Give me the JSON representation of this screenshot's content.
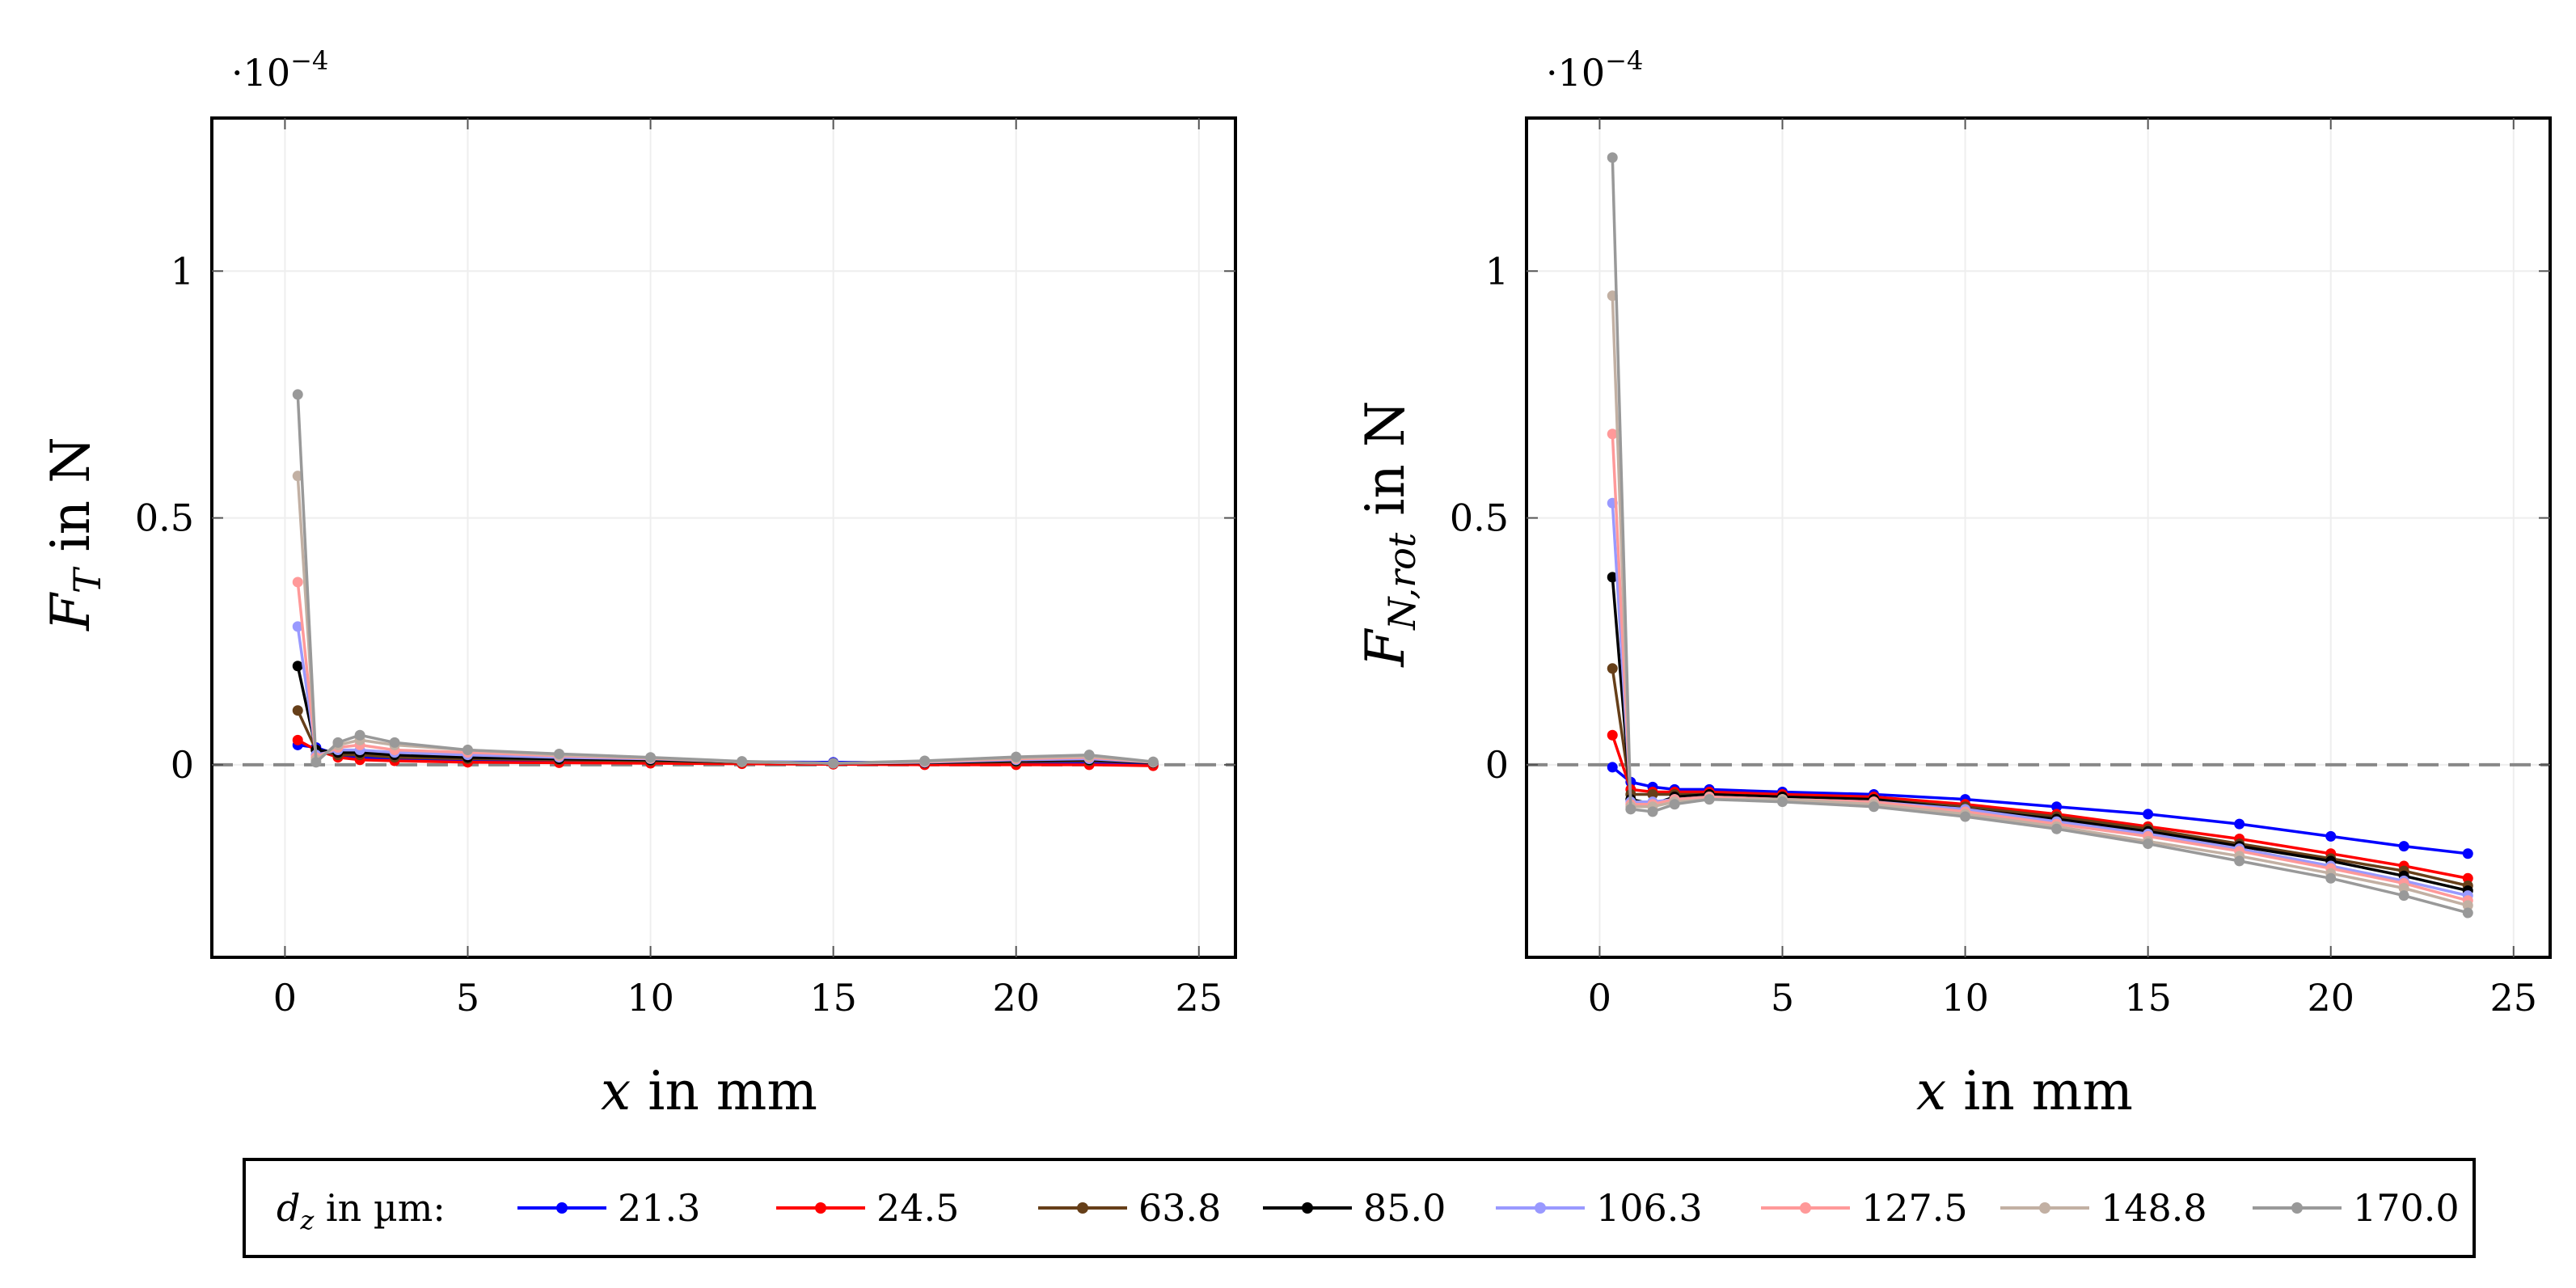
{
  "chart_data": [
    {
      "type": "line",
      "title": "",
      "scale_label": "·10",
      "scale_exponent": "−4",
      "ylabel_main": "F",
      "ylabel_sub": "T",
      "ylabel_unit": " in N",
      "xlabel_var": "x",
      "xlabel_unit": " in mm",
      "xlim": [
        -2,
        26
      ],
      "ylim": [
        -0.39,
        1.31
      ],
      "xticks": [
        0,
        5,
        10,
        15,
        20,
        25
      ],
      "xtick_labels": [
        "0",
        "5",
        "10",
        "15",
        "20",
        "25"
      ],
      "yticks": [
        0,
        0.5,
        1
      ],
      "ytick_labels": [
        "0",
        "0.5",
        "1"
      ],
      "grid": true,
      "reference_line_y": 0,
      "peaks": {
        "21.3": 0.04,
        "24.5": 0.05,
        "63.8": 0.11,
        "85.0": 0.2,
        "106.3": 0.28,
        "127.5": 0.37,
        "148.8": 0.585,
        "170.0": 0.75
      },
      "series": [
        {
          "name": "21.3",
          "x": [
            0.35,
            0.85,
            1.45,
            2.05,
            3.0,
            5.0,
            7.5,
            10.0,
            12.5,
            15.0,
            17.5,
            20.0,
            22.0,
            23.75
          ],
          "y": [
            0.04,
            0.035,
            0.02,
            0.015,
            0.012,
            0.01,
            0.008,
            0.007,
            0.006,
            0.005,
            0.005,
            0.004,
            0.004,
            0.002
          ]
        },
        {
          "name": "24.5",
          "x": [
            0.35,
            0.85,
            1.45,
            2.05,
            3.0,
            5.0,
            7.5,
            10.0,
            12.5,
            15.0,
            17.5,
            20.0,
            22.0,
            23.75
          ],
          "y": [
            0.05,
            0.03,
            0.015,
            0.01,
            0.008,
            0.005,
            0.004,
            0.003,
            0.002,
            0.001,
            0.0,
            0.0,
            0.0,
            -0.002
          ]
        },
        {
          "name": "63.8",
          "x": [
            0.35,
            0.85,
            1.45,
            2.05,
            3.0,
            5.0,
            7.5,
            10.0,
            12.5,
            15.0,
            17.5,
            20.0,
            22.0,
            23.75
          ],
          "y": [
            0.11,
            0.03,
            0.02,
            0.02,
            0.015,
            0.012,
            0.01,
            0.008,
            0.005,
            0.003,
            0.004,
            0.006,
            0.008,
            0.004
          ]
        },
        {
          "name": "85.0",
          "x": [
            0.35,
            0.85,
            1.45,
            2.05,
            3.0,
            5.0,
            7.5,
            10.0,
            12.5,
            15.0,
            17.5,
            20.0,
            22.0,
            23.75
          ],
          "y": [
            0.2,
            0.03,
            0.025,
            0.025,
            0.02,
            0.015,
            0.012,
            0.01,
            0.006,
            0.003,
            0.004,
            0.008,
            0.01,
            0.004
          ]
        },
        {
          "name": "106.3",
          "x": [
            0.35,
            0.85,
            1.45,
            2.05,
            3.0,
            5.0,
            7.5,
            10.0,
            12.5,
            15.0,
            17.5,
            20.0,
            22.0,
            23.75
          ],
          "y": [
            0.28,
            0.02,
            0.03,
            0.03,
            0.025,
            0.02,
            0.015,
            0.012,
            0.006,
            0.003,
            0.005,
            0.01,
            0.012,
            0.005
          ]
        },
        {
          "name": "127.5",
          "x": [
            0.35,
            0.85,
            1.45,
            2.05,
            3.0,
            5.0,
            7.5,
            10.0,
            12.5,
            15.0,
            17.5,
            20.0,
            22.0,
            23.75
          ],
          "y": [
            0.37,
            0.015,
            0.035,
            0.04,
            0.03,
            0.025,
            0.018,
            0.013,
            0.006,
            0.003,
            0.006,
            0.012,
            0.015,
            0.005
          ]
        },
        {
          "name": "148.8",
          "x": [
            0.35,
            0.85,
            1.45,
            2.05,
            3.0,
            5.0,
            7.5,
            10.0,
            12.5,
            15.0,
            17.5,
            20.0,
            22.0,
            23.75
          ],
          "y": [
            0.585,
            0.01,
            0.04,
            0.05,
            0.04,
            0.03,
            0.02,
            0.014,
            0.006,
            0.003,
            0.007,
            0.014,
            0.017,
            0.006
          ]
        },
        {
          "name": "170.0",
          "x": [
            0.35,
            0.85,
            1.45,
            2.05,
            3.0,
            5.0,
            7.5,
            10.0,
            12.5,
            15.0,
            17.5,
            20.0,
            22.0,
            23.75
          ],
          "y": [
            0.75,
            0.005,
            0.045,
            0.06,
            0.045,
            0.03,
            0.022,
            0.015,
            0.007,
            0.003,
            0.008,
            0.016,
            0.02,
            0.006
          ]
        }
      ]
    },
    {
      "type": "line",
      "title": "",
      "scale_label": "·10",
      "scale_exponent": "−4",
      "ylabel_main": "F",
      "ylabel_sub": "N,rot",
      "ylabel_unit": " in N",
      "xlabel_var": "x",
      "xlabel_unit": " in mm",
      "xlim": [
        -2,
        26
      ],
      "ylim": [
        -0.39,
        1.31
      ],
      "xticks": [
        0,
        5,
        10,
        15,
        20,
        25
      ],
      "xtick_labels": [
        "0",
        "5",
        "10",
        "15",
        "20",
        "25"
      ],
      "yticks": [
        0,
        0.5,
        1
      ],
      "ytick_labels": [
        "0",
        "0.5",
        "1"
      ],
      "grid": true,
      "reference_line_y": 0,
      "series": [
        {
          "name": "21.3",
          "x": [
            0.35,
            0.85,
            1.45,
            2.05,
            3.0,
            5.0,
            7.5,
            10.0,
            12.5,
            15.0,
            17.5,
            20.0,
            22.0,
            23.75
          ],
          "y": [
            -0.005,
            -0.035,
            -0.045,
            -0.05,
            -0.05,
            -0.055,
            -0.06,
            -0.07,
            -0.085,
            -0.1,
            -0.12,
            -0.145,
            -0.165,
            -0.18
          ]
        },
        {
          "name": "24.5",
          "x": [
            0.35,
            0.85,
            1.45,
            2.05,
            3.0,
            5.0,
            7.5,
            10.0,
            12.5,
            15.0,
            17.5,
            20.0,
            22.0,
            23.75
          ],
          "y": [
            0.06,
            -0.05,
            -0.055,
            -0.055,
            -0.055,
            -0.06,
            -0.065,
            -0.08,
            -0.1,
            -0.125,
            -0.15,
            -0.18,
            -0.205,
            -0.23
          ]
        },
        {
          "name": "63.8",
          "x": [
            0.35,
            0.85,
            1.45,
            2.05,
            3.0,
            5.0,
            7.5,
            10.0,
            12.5,
            15.0,
            17.5,
            20.0,
            22.0,
            23.75
          ],
          "y": [
            0.195,
            -0.06,
            -0.06,
            -0.06,
            -0.06,
            -0.065,
            -0.07,
            -0.085,
            -0.105,
            -0.13,
            -0.16,
            -0.19,
            -0.215,
            -0.245
          ]
        },
        {
          "name": "85.0",
          "x": [
            0.35,
            0.85,
            1.45,
            2.05,
            3.0,
            5.0,
            7.5,
            10.0,
            12.5,
            15.0,
            17.5,
            20.0,
            22.0,
            23.75
          ],
          "y": [
            0.38,
            -0.07,
            -0.08,
            -0.065,
            -0.06,
            -0.065,
            -0.07,
            -0.09,
            -0.11,
            -0.135,
            -0.165,
            -0.195,
            -0.225,
            -0.255
          ]
        },
        {
          "name": "106.3",
          "x": [
            0.35,
            0.85,
            1.45,
            2.05,
            3.0,
            5.0,
            7.5,
            10.0,
            12.5,
            15.0,
            17.5,
            20.0,
            22.0,
            23.75
          ],
          "y": [
            0.53,
            -0.075,
            -0.075,
            -0.07,
            -0.065,
            -0.07,
            -0.075,
            -0.09,
            -0.115,
            -0.14,
            -0.17,
            -0.205,
            -0.235,
            -0.265
          ]
        },
        {
          "name": "127.5",
          "x": [
            0.35,
            0.85,
            1.45,
            2.05,
            3.0,
            5.0,
            7.5,
            10.0,
            12.5,
            15.0,
            17.5,
            20.0,
            22.0,
            23.75
          ],
          "y": [
            0.67,
            -0.08,
            -0.08,
            -0.07,
            -0.065,
            -0.07,
            -0.075,
            -0.095,
            -0.12,
            -0.145,
            -0.175,
            -0.21,
            -0.24,
            -0.275
          ]
        },
        {
          "name": "148.8",
          "x": [
            0.35,
            0.85,
            1.45,
            2.05,
            3.0,
            5.0,
            7.5,
            10.0,
            12.5,
            15.0,
            17.5,
            20.0,
            22.0,
            23.75
          ],
          "y": [
            0.95,
            -0.085,
            -0.085,
            -0.075,
            -0.07,
            -0.07,
            -0.08,
            -0.1,
            -0.125,
            -0.155,
            -0.185,
            -0.22,
            -0.25,
            -0.285
          ]
        },
        {
          "name": "170.0",
          "x": [
            0.35,
            0.85,
            1.45,
            2.05,
            3.0,
            5.0,
            7.5,
            10.0,
            12.5,
            15.0,
            17.5,
            20.0,
            22.0,
            23.75
          ],
          "y": [
            1.23,
            -0.09,
            -0.095,
            -0.08,
            -0.07,
            -0.075,
            -0.085,
            -0.105,
            -0.13,
            -0.16,
            -0.195,
            -0.23,
            -0.265,
            -0.3
          ]
        }
      ]
    }
  ],
  "legend": {
    "title_var": "d",
    "title_sub": "z",
    "title_rest": " in µm:",
    "items": [
      {
        "label": "21.3",
        "color": "#0000ff"
      },
      {
        "label": "24.5",
        "color": "#ff0000"
      },
      {
        "label": "63.8",
        "color": "#663f19"
      },
      {
        "label": "85.0",
        "color": "#000000"
      },
      {
        "label": "106.3",
        "color": "#9999ff"
      },
      {
        "label": "127.5",
        "color": "#ff9999"
      },
      {
        "label": "148.8",
        "color": "#c2b0a3"
      },
      {
        "label": "170.0",
        "color": "#999999"
      }
    ]
  }
}
